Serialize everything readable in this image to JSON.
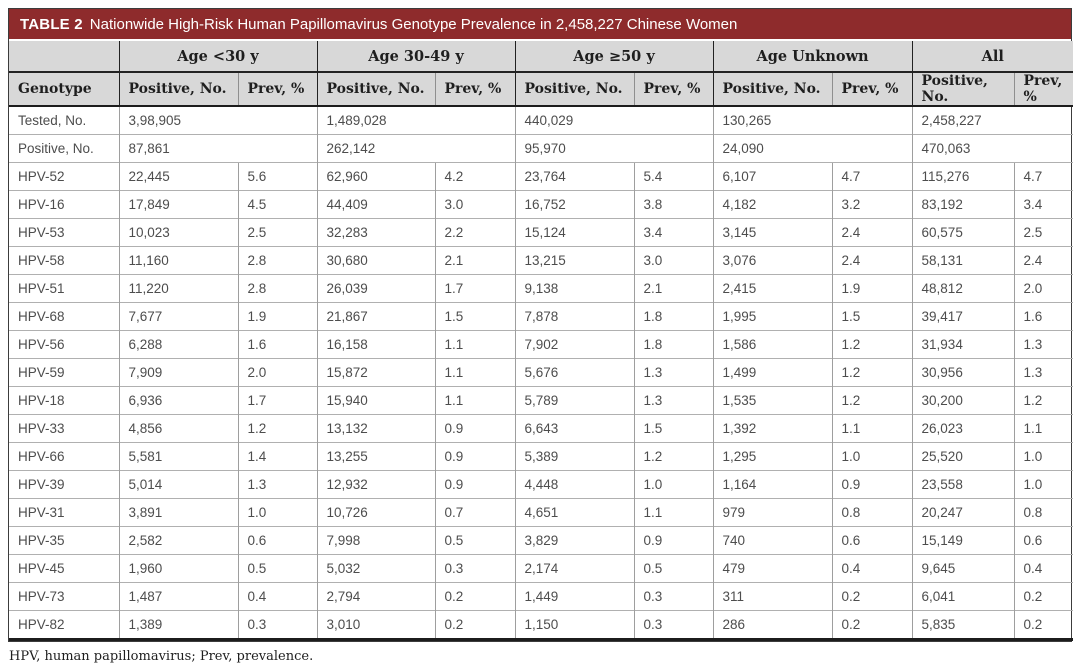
{
  "title": {
    "label": "TABLE 2",
    "text": "Nationwide High-Risk Human Papillomavirus Genotype Prevalence in 2,458,227 Chinese Women"
  },
  "colors": {
    "title_bar": "#8e2b2c",
    "header_bg": "#d8d8d8",
    "heavy_line": "#1c1c1c",
    "grid_line": "#9e9e9e",
    "row_line": "#b0b0b0",
    "data_text": "#4d4d4d"
  },
  "header": {
    "genotype_label": "Genotype",
    "groups": [
      {
        "label": "Age <30 y"
      },
      {
        "label": "Age 30-49 y"
      },
      {
        "label": "Age ≥50 y"
      },
      {
        "label": "Age Unknown"
      },
      {
        "label": "All"
      }
    ],
    "sub_positive": "Positive, No.",
    "sub_prev": "Prev, %"
  },
  "summary_rows": [
    {
      "label": "Tested, No.",
      "values": [
        "3,98,905",
        "1,489,028",
        "440,029",
        "130,265",
        "2,458,227"
      ]
    },
    {
      "label": "Positive, No.",
      "values": [
        "87,861",
        "262,142",
        "95,970",
        "24,090",
        "470,063"
      ]
    }
  ],
  "rows": [
    {
      "genotype": "HPV-52",
      "cells": [
        "22,445",
        "5.6",
        "62,960",
        "4.2",
        "23,764",
        "5.4",
        "6,107",
        "4.7",
        "115,276",
        "4.7"
      ]
    },
    {
      "genotype": "HPV-16",
      "cells": [
        "17,849",
        "4.5",
        "44,409",
        "3.0",
        "16,752",
        "3.8",
        "4,182",
        "3.2",
        "83,192",
        "3.4"
      ]
    },
    {
      "genotype": "HPV-53",
      "cells": [
        "10,023",
        "2.5",
        "32,283",
        "2.2",
        "15,124",
        "3.4",
        "3,145",
        "2.4",
        "60,575",
        "2.5"
      ]
    },
    {
      "genotype": "HPV-58",
      "cells": [
        "11,160",
        "2.8",
        "30,680",
        "2.1",
        "13,215",
        "3.0",
        "3,076",
        "2.4",
        "58,131",
        "2.4"
      ]
    },
    {
      "genotype": "HPV-51",
      "cells": [
        "11,220",
        "2.8",
        "26,039",
        "1.7",
        "9,138",
        "2.1",
        "2,415",
        "1.9",
        "48,812",
        "2.0"
      ]
    },
    {
      "genotype": "HPV-68",
      "cells": [
        "7,677",
        "1.9",
        "21,867",
        "1.5",
        "7,878",
        "1.8",
        "1,995",
        "1.5",
        "39,417",
        "1.6"
      ]
    },
    {
      "genotype": "HPV-56",
      "cells": [
        "6,288",
        "1.6",
        "16,158",
        "1.1",
        "7,902",
        "1.8",
        "1,586",
        "1.2",
        "31,934",
        "1.3"
      ]
    },
    {
      "genotype": "HPV-59",
      "cells": [
        "7,909",
        "2.0",
        "15,872",
        "1.1",
        "5,676",
        "1.3",
        "1,499",
        "1.2",
        "30,956",
        "1.3"
      ]
    },
    {
      "genotype": "HPV-18",
      "cells": [
        "6,936",
        "1.7",
        "15,940",
        "1.1",
        "5,789",
        "1.3",
        "1,535",
        "1.2",
        "30,200",
        "1.2"
      ]
    },
    {
      "genotype": "HPV-33",
      "cells": [
        "4,856",
        "1.2",
        "13,132",
        "0.9",
        "6,643",
        "1.5",
        "1,392",
        "1.1",
        "26,023",
        "1.1"
      ]
    },
    {
      "genotype": "HPV-66",
      "cells": [
        "5,581",
        "1.4",
        "13,255",
        "0.9",
        "5,389",
        "1.2",
        "1,295",
        "1.0",
        "25,520",
        "1.0"
      ]
    },
    {
      "genotype": "HPV-39",
      "cells": [
        "5,014",
        "1.3",
        "12,932",
        "0.9",
        "4,448",
        "1.0",
        "1,164",
        "0.9",
        "23,558",
        "1.0"
      ]
    },
    {
      "genotype": "HPV-31",
      "cells": [
        "3,891",
        "1.0",
        "10,726",
        "0.7",
        "4,651",
        "1.1",
        "979",
        "0.8",
        "20,247",
        "0.8"
      ]
    },
    {
      "genotype": "HPV-35",
      "cells": [
        "2,582",
        "0.6",
        "7,998",
        "0.5",
        "3,829",
        "0.9",
        "740",
        "0.6",
        "15,149",
        "0.6"
      ]
    },
    {
      "genotype": "HPV-45",
      "cells": [
        "1,960",
        "0.5",
        "5,032",
        "0.3",
        "2,174",
        "0.5",
        "479",
        "0.4",
        "9,645",
        "0.4"
      ]
    },
    {
      "genotype": "HPV-73",
      "cells": [
        "1,487",
        "0.4",
        "2,794",
        "0.2",
        "1,449",
        "0.3",
        "311",
        "0.2",
        "6,041",
        "0.2"
      ]
    },
    {
      "genotype": "HPV-82",
      "cells": [
        "1,389",
        "0.3",
        "3,010",
        "0.2",
        "1,150",
        "0.3",
        "286",
        "0.2",
        "5,835",
        "0.2"
      ]
    }
  ],
  "footnote": "HPV, human papillomavirus; Prev, prevalence."
}
